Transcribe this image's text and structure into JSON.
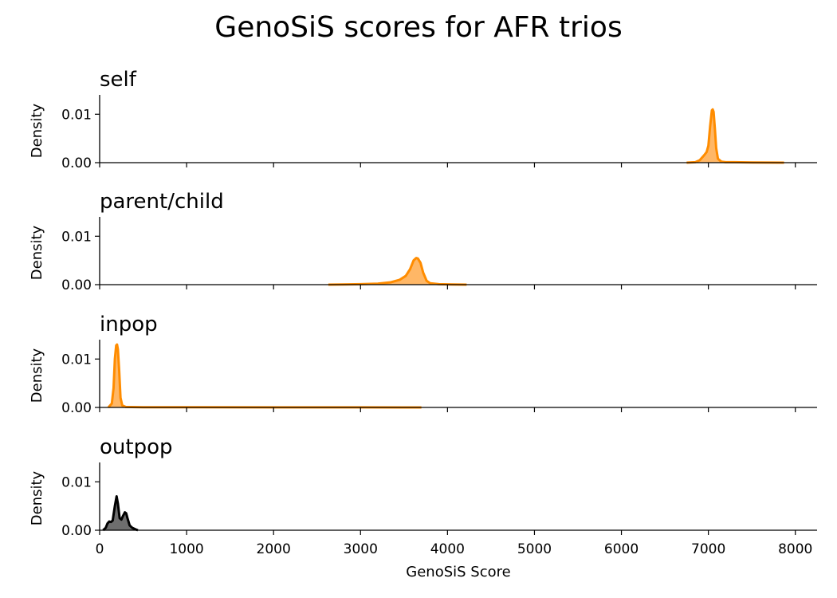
{
  "chart_data": {
    "type": "area",
    "title": "GenoSiS scores for AFR trios",
    "xlabel": "GenoSiS Score",
    "ylabel": "Density",
    "xlim": [
      0,
      8250
    ],
    "ylim": [
      0,
      0.014
    ],
    "xticks": [
      "0",
      "1000",
      "2000",
      "3000",
      "4000",
      "5000",
      "6000",
      "7000",
      "8000"
    ],
    "yticks": [
      "0.00",
      "0.01"
    ],
    "colors": {
      "orange": "#ff8c00",
      "orange_fill": "#ffb766",
      "black": "#000000",
      "gray_fill": "#6e6e6e"
    },
    "panels": [
      {
        "name": "self",
        "color": "orange",
        "x": [
          6750,
          6850,
          6900,
          6950,
          6980,
          7000,
          7020,
          7040,
          7050,
          7060,
          7075,
          7090,
          7110,
          7150,
          7200,
          7300,
          7500,
          7700,
          7870
        ],
        "y": [
          0,
          0.0001,
          0.0005,
          0.0015,
          0.0022,
          0.0035,
          0.0075,
          0.0108,
          0.011,
          0.0105,
          0.007,
          0.003,
          0.0008,
          0.0002,
          0.0001,
          0.0001,
          5e-05,
          2e-05,
          0
        ]
      },
      {
        "name": "parent/child",
        "color": "orange",
        "x": [
          2630,
          2800,
          3000,
          3200,
          3350,
          3450,
          3520,
          3570,
          3610,
          3640,
          3660,
          3690,
          3720,
          3760,
          3800,
          3900,
          4050,
          4220
        ],
        "y": [
          0,
          5e-05,
          0.0001,
          0.0002,
          0.0005,
          0.001,
          0.0018,
          0.0032,
          0.005,
          0.0055,
          0.0054,
          0.0045,
          0.0025,
          0.0008,
          0.0003,
          0.0001,
          5e-05,
          0
        ]
      },
      {
        "name": "inpop",
        "color": "orange",
        "x": [
          100,
          140,
          160,
          175,
          190,
          200,
          210,
          225,
          240,
          260,
          300,
          500,
          1000,
          2000,
          3000,
          3700
        ],
        "y": [
          0,
          0.0008,
          0.004,
          0.01,
          0.0128,
          0.013,
          0.012,
          0.0075,
          0.002,
          0.0004,
          0.0001,
          5e-05,
          4e-05,
          3e-05,
          2e-05,
          0
        ]
      },
      {
        "name": "outpop",
        "color": "black",
        "x": [
          40,
          70,
          90,
          110,
          130,
          150,
          175,
          195,
          210,
          230,
          250,
          270,
          290,
          305,
          320,
          345,
          375,
          410,
          440
        ],
        "y": [
          0,
          0.0005,
          0.0014,
          0.0018,
          0.0017,
          0.002,
          0.005,
          0.007,
          0.0055,
          0.0025,
          0.0022,
          0.003,
          0.0037,
          0.0035,
          0.0025,
          0.001,
          0.0005,
          0.0002,
          0
        ]
      }
    ]
  }
}
